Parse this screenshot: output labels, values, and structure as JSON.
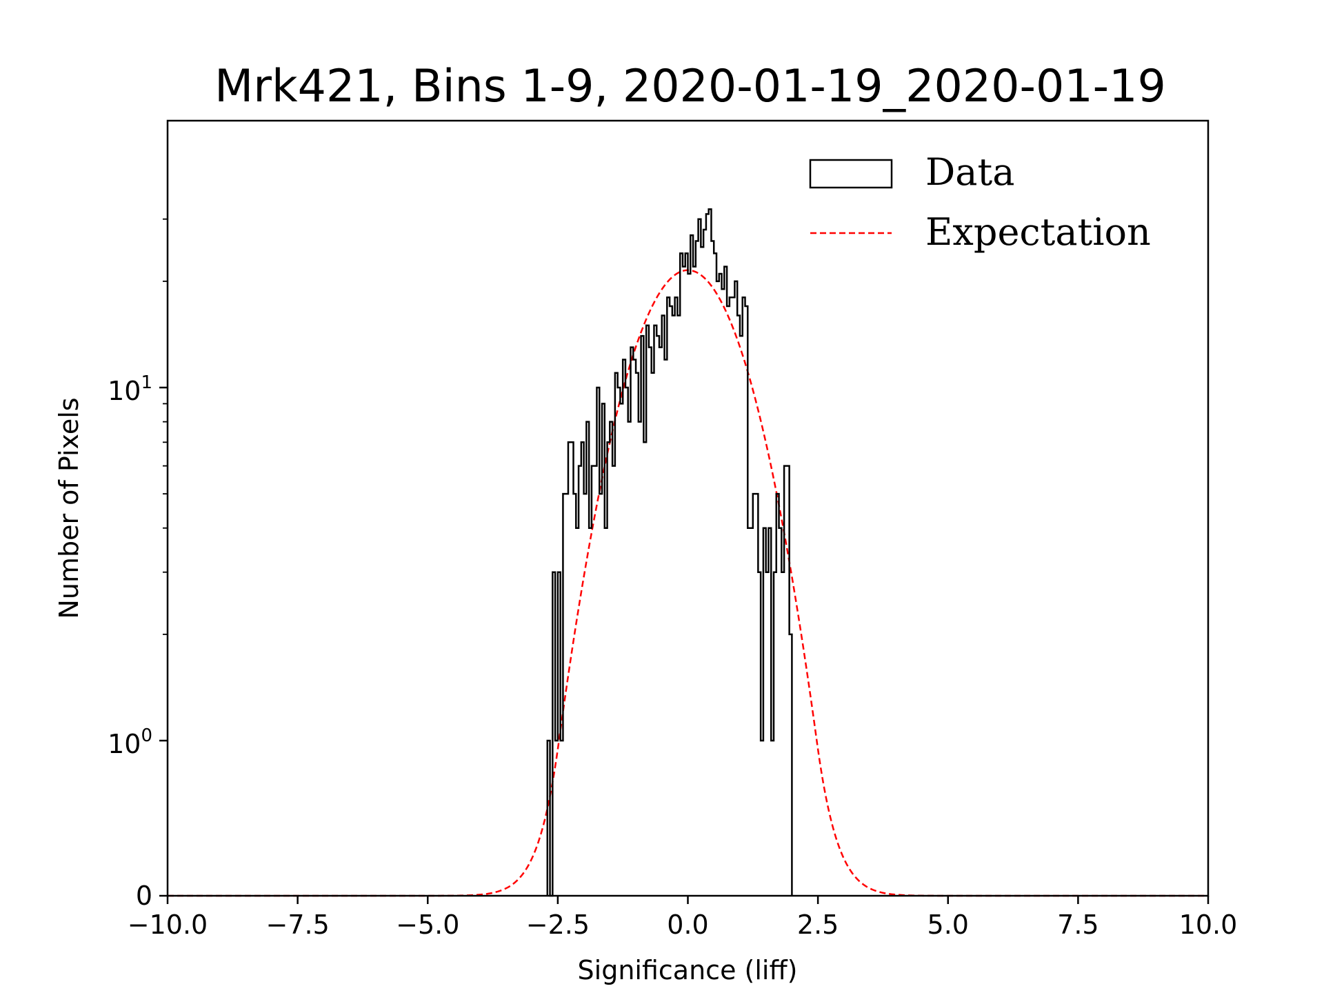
{
  "chart_data": {
    "type": "histogram",
    "title": "Mrk421, Bins 1-9, 2020-01-19_2020-01-19",
    "xlabel": "Significance (liff)",
    "ylabel": "Number of Pixels",
    "xlim": [
      -10,
      10
    ],
    "y_scale": "symlog",
    "y_ticks": [
      {
        "value": 0,
        "label": "0"
      },
      {
        "value": 1,
        "label_base": "10",
        "label_exp": "0"
      },
      {
        "value": 10,
        "label_base": "10",
        "label_exp": "1"
      }
    ],
    "x_ticks": [
      {
        "value": -10,
        "label": "−10.0"
      },
      {
        "value": -7.5,
        "label": "−7.5"
      },
      {
        "value": -5,
        "label": "−5.0"
      },
      {
        "value": -2.5,
        "label": "−2.5"
      },
      {
        "value": 0,
        "label": "0.0"
      },
      {
        "value": 2.5,
        "label": "2.5"
      },
      {
        "value": 5,
        "label": "5.0"
      },
      {
        "value": 7.5,
        "label": "7.5"
      },
      {
        "value": 10,
        "label": "10.0"
      }
    ],
    "legend": {
      "location": "upper right",
      "entries": [
        {
          "label": "Data",
          "style": "step",
          "color": "#000000"
        },
        {
          "label": "Expectation",
          "style": "dashed",
          "color": "#ff0000"
        }
      ]
    },
    "series": [
      {
        "name": "Data",
        "kind": "step-histogram",
        "color": "#000000",
        "bin_start": -2.7,
        "bin_width": 0.05,
        "counts": [
          1,
          0,
          3,
          1,
          3,
          1,
          5,
          5,
          7,
          7,
          5,
          4,
          6,
          7,
          5,
          8,
          4,
          6,
          6,
          10,
          5,
          9,
          4,
          7,
          8,
          6,
          11,
          10,
          9,
          12,
          10,
          8,
          13,
          12,
          11,
          8,
          14,
          7,
          15,
          13,
          11,
          15,
          14,
          13,
          16,
          12,
          18,
          17,
          16,
          18,
          16,
          24,
          22,
          24,
          21,
          27,
          22,
          26,
          30,
          25,
          28,
          31,
          32,
          26,
          24,
          20,
          21,
          19,
          22,
          17,
          18,
          18,
          20,
          16,
          14,
          18,
          17,
          4,
          4,
          5,
          5,
          3,
          1,
          4,
          3,
          4,
          1,
          3,
          5,
          4,
          3,
          6,
          6,
          2
        ]
      },
      {
        "name": "Expectation",
        "kind": "gaussian",
        "color": "#ff0000",
        "linestyle": "dashed",
        "amplitude": 21.5,
        "mean": 0,
        "sigma": 1,
        "x_range": [
          -10,
          10
        ]
      }
    ]
  }
}
